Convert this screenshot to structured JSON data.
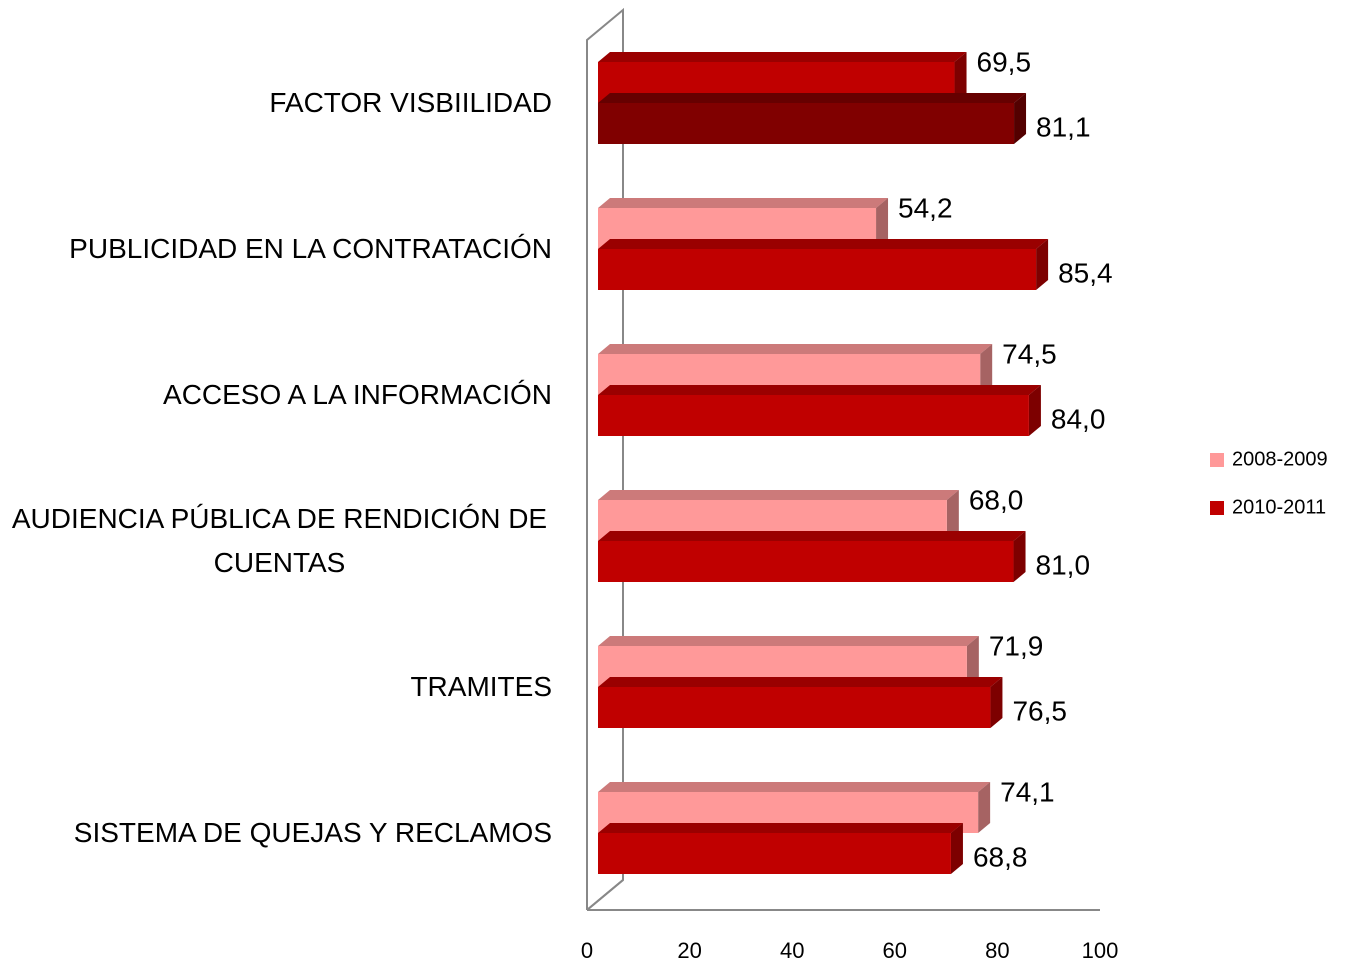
{
  "chart_data": {
    "type": "bar3d_horizontal",
    "categories": [
      "FACTOR VISBIILIDAD",
      "PUBLICIDAD EN LA CONTRATACIÓN",
      "ACCESO A LA INFORMACIÓN",
      "AUDIENCIA PÚBLICA DE RENDICIÓN DE CUENTAS",
      "TRAMITES",
      "SISTEMA DE QUEJAS Y RECLAMOS"
    ],
    "series": [
      {
        "name": "2008-2009",
        "color": "#ff9999",
        "colors": [
          "#c00000",
          "#ff9999",
          "#ff9999",
          "#ff9999",
          "#ff9999",
          "#ff9999"
        ],
        "values": [
          69.5,
          54.2,
          74.5,
          68.0,
          71.9,
          74.1
        ],
        "value_labels": [
          "69,5",
          "54,2",
          "74,5",
          "68,0",
          "71,9",
          "74,1"
        ]
      },
      {
        "name": "2010-2011",
        "color": "#c00000",
        "colors": [
          "#800000",
          "#c00000",
          "#c00000",
          "#c00000",
          "#c00000",
          "#c00000"
        ],
        "values": [
          81.1,
          85.4,
          84.0,
          81.0,
          76.5,
          68.8
        ],
        "value_labels": [
          "81,1",
          "85,4",
          "84,0",
          "81,0",
          "76,5",
          "68,8"
        ]
      }
    ],
    "xlim": [
      0,
      100
    ],
    "xticks": [
      0,
      20,
      40,
      60,
      80,
      100
    ],
    "legend": "right"
  }
}
